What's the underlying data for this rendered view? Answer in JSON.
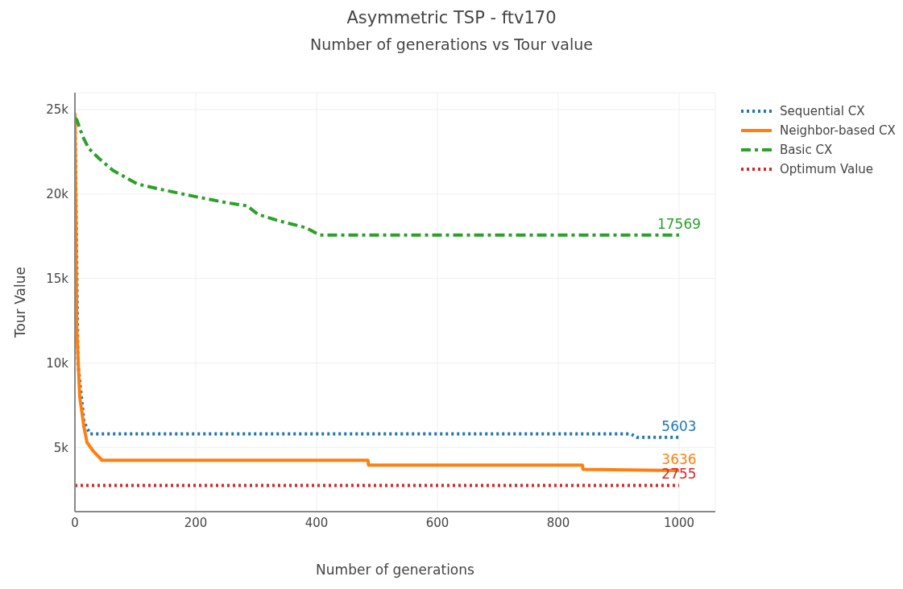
{
  "chart_data": {
    "type": "line",
    "title": "Asymmetric TSP - ftv170",
    "subtitle": "Number of generations vs Tour value",
    "xlabel": "Number of generations",
    "ylabel": "Tour Value",
    "xlim": [
      0,
      1060
    ],
    "xticks": [
      0,
      200,
      400,
      600,
      800,
      1000
    ],
    "ylim": [
      1200,
      26000
    ],
    "yticks": [
      {
        "value": 5000,
        "label": "5k"
      },
      {
        "value": 10000,
        "label": "10k"
      },
      {
        "value": 15000,
        "label": "15k"
      },
      {
        "value": 20000,
        "label": "20k"
      },
      {
        "value": 25000,
        "label": "25k"
      }
    ],
    "grid": true,
    "legend": "top right",
    "marker": "none",
    "series": [
      {
        "name": "Sequential CX",
        "color": "#1f77b4",
        "line_style": "dotted",
        "x": [
          0,
          5,
          15,
          25,
          920,
          930,
          1000
        ],
        "values": [
          24700,
          10000,
          6500,
          5800,
          5800,
          5603,
          5603
        ],
        "value_labels": [
          null,
          null,
          null,
          null,
          null,
          null,
          "5603"
        ]
      },
      {
        "name": "Neighbor-based CX",
        "color": "#ff7f0e",
        "line_style": "solid",
        "x": [
          0,
          3,
          8,
          15,
          20,
          30,
          45,
          485,
          486,
          840,
          841,
          1000
        ],
        "values": [
          24800,
          12000,
          8000,
          6200,
          5300,
          4800,
          4240,
          4240,
          3950,
          3950,
          3700,
          3636
        ],
        "value_labels": [
          null,
          null,
          null,
          null,
          null,
          null,
          null,
          null,
          null,
          null,
          null,
          "3636"
        ]
      },
      {
        "name": "Basic CX",
        "color": "#2ca02c",
        "line_style": "dashed",
        "x": [
          0,
          3,
          13,
          23,
          40,
          63,
          103,
          139,
          192,
          249,
          285,
          303,
          339,
          383,
          405,
          1000
        ],
        "values": [
          24500,
          24400,
          23400,
          22700,
          22100,
          21400,
          20600,
          20300,
          19900,
          19500,
          19300,
          18800,
          18400,
          18000,
          17569,
          17569
        ],
        "value_labels": [
          null,
          null,
          null,
          null,
          null,
          null,
          null,
          null,
          null,
          null,
          null,
          null,
          null,
          null,
          null,
          "17569"
        ]
      },
      {
        "name": "Optimum Value",
        "color": "#d62728",
        "line_style": "dotted",
        "x": [
          0,
          1000
        ],
        "values": [
          2755,
          2755
        ],
        "value_labels": [
          null,
          "2755"
        ]
      }
    ]
  }
}
